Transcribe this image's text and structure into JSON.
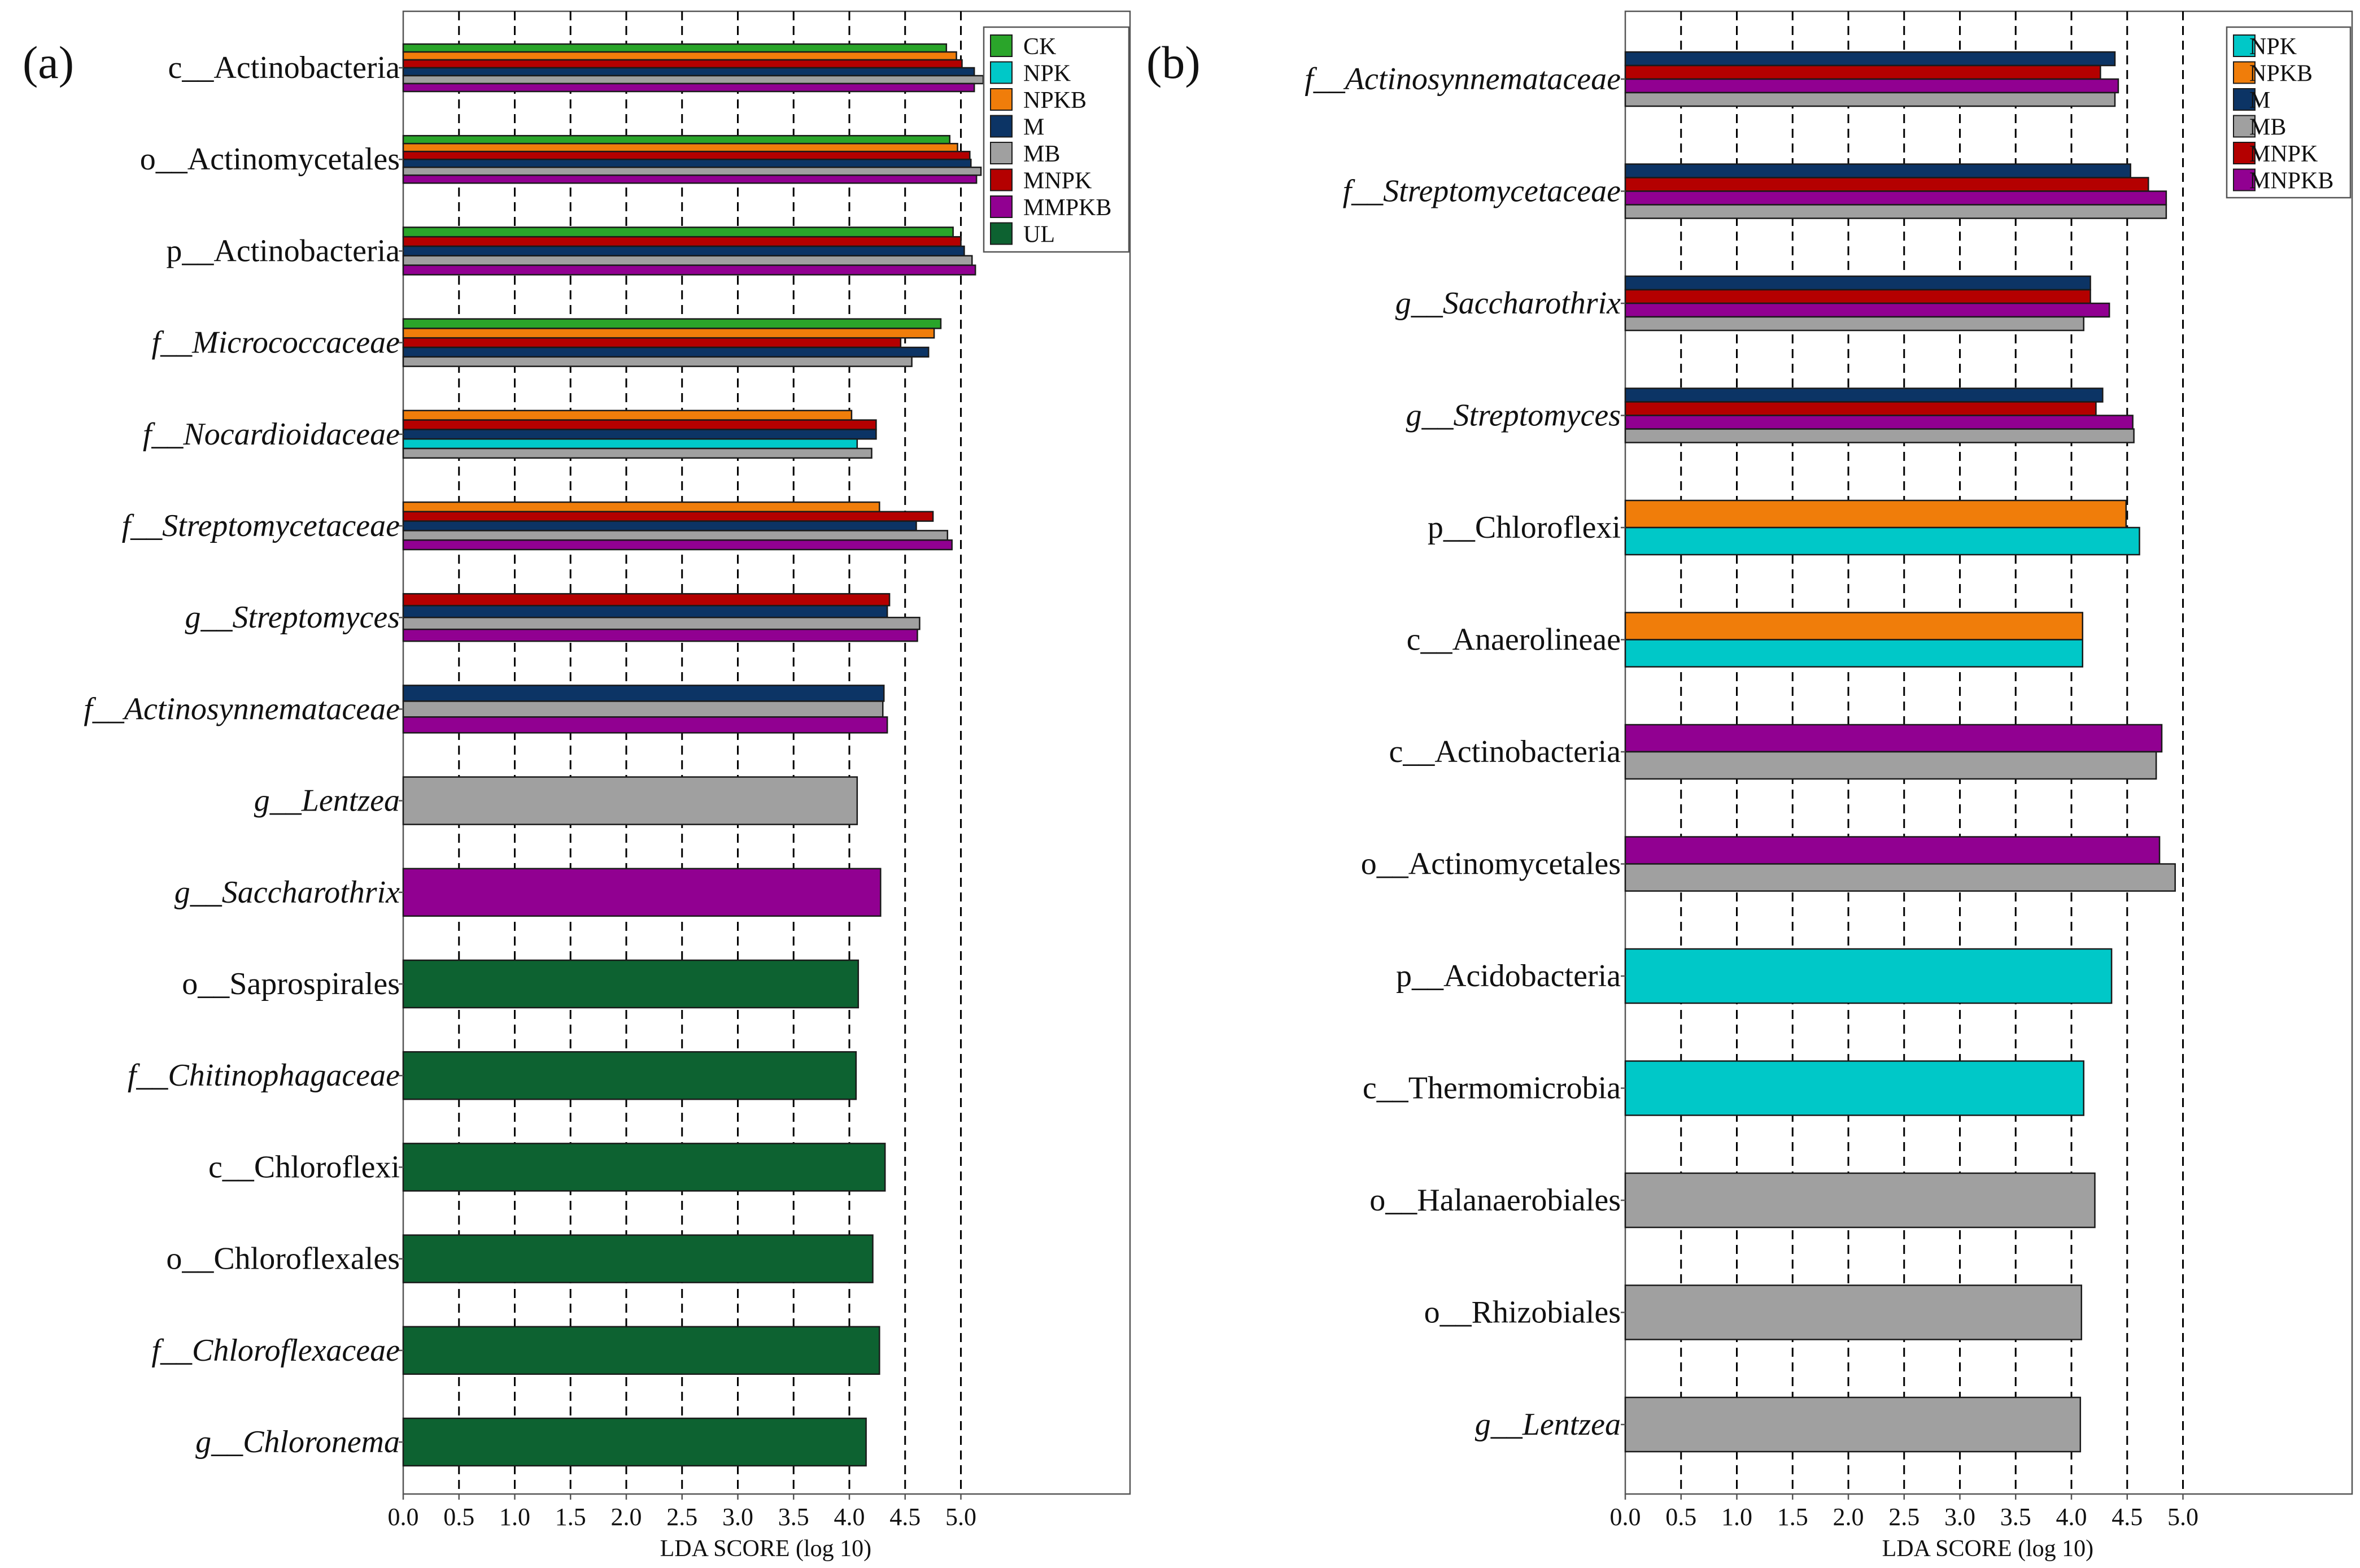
{
  "colors": {
    "CK": "#2aa52a",
    "NPK": "#00c8c8",
    "NPKB": "#f07d0a",
    "M": "#0c3465",
    "MB": "#a0a0a0",
    "MNPK": "#b40000",
    "MMPKB": "#910091",
    "MNPKB": "#910091",
    "UL": "#0d6231"
  },
  "chart_data": [
    {
      "type": "bar",
      "orientation": "horizontal",
      "panel_label": "(a)",
      "title": "",
      "xlabel": "LDA SCORE (log 10)",
      "ylabel": "",
      "xlim": [
        0,
        6.5
      ],
      "xticks": [
        "0.0",
        "0.5",
        "1.0",
        "1.5",
        "2.0",
        "2.5",
        "3.0",
        "3.5",
        "4.0",
        "4.5",
        "5.0"
      ],
      "grid": "vertical dashed at 0.5 intervals",
      "legend_position": "top-right",
      "legend": [
        "CK",
        "NPK",
        "NPKB",
        "M",
        "MB",
        "MNPK",
        "MMPKB",
        "UL"
      ],
      "categories": [
        {
          "prefix": "c__",
          "name": "Actinobacteria",
          "italic": false,
          "bars": [
            {
              "group": "CK",
              "value": 4.87
            },
            {
              "group": "NPKB",
              "value": 4.96
            },
            {
              "group": "MNPK",
              "value": 5.01
            },
            {
              "group": "M",
              "value": 5.12
            },
            {
              "group": "MB",
              "value": 5.2
            },
            {
              "group": "MMPKB",
              "value": 5.12
            }
          ]
        },
        {
          "prefix": "o__",
          "name": "Actinomycetales",
          "italic": false,
          "bars": [
            {
              "group": "CK",
              "value": 4.9
            },
            {
              "group": "NPKB",
              "value": 4.97
            },
            {
              "group": "MNPK",
              "value": 5.08
            },
            {
              "group": "M",
              "value": 5.09
            },
            {
              "group": "MB",
              "value": 5.18
            },
            {
              "group": "MMPKB",
              "value": 5.14
            }
          ]
        },
        {
          "prefix": "p__",
          "name": "Actinobacteria",
          "italic": false,
          "bars": [
            {
              "group": "CK",
              "value": 4.93
            },
            {
              "group": "MNPK",
              "value": 5.0
            },
            {
              "group": "M",
              "value": 5.03
            },
            {
              "group": "MB",
              "value": 5.1
            },
            {
              "group": "MMPKB",
              "value": 5.13
            }
          ]
        },
        {
          "prefix": "f__",
          "name": "Micrococcaceae",
          "italic": true,
          "bars": [
            {
              "group": "CK",
              "value": 4.82
            },
            {
              "group": "NPKB",
              "value": 4.76
            },
            {
              "group": "MNPK",
              "value": 4.46
            },
            {
              "group": "M",
              "value": 4.71
            },
            {
              "group": "MB",
              "value": 4.56
            }
          ]
        },
        {
          "prefix": "f__",
          "name": "Nocardioidaceae",
          "italic": true,
          "bars": [
            {
              "group": "NPKB",
              "value": 4.02
            },
            {
              "group": "MNPK",
              "value": 4.24
            },
            {
              "group": "M",
              "value": 4.24
            },
            {
              "group": "NPK",
              "value": 4.07
            },
            {
              "group": "MB",
              "value": 4.2
            }
          ]
        },
        {
          "prefix": "f__",
          "name": "Streptomycetaceae",
          "italic": true,
          "bars": [
            {
              "group": "NPKB",
              "value": 4.27
            },
            {
              "group": "MNPK",
              "value": 4.75
            },
            {
              "group": "M",
              "value": 4.6
            },
            {
              "group": "MB",
              "value": 4.88
            },
            {
              "group": "MMPKB",
              "value": 4.92
            }
          ]
        },
        {
          "prefix": "g__",
          "name": "Streptomyces",
          "italic": true,
          "bars": [
            {
              "group": "MNPK",
              "value": 4.36
            },
            {
              "group": "M",
              "value": 4.34
            },
            {
              "group": "MB",
              "value": 4.63
            },
            {
              "group": "MMPKB",
              "value": 4.61
            }
          ]
        },
        {
          "prefix": "f__",
          "name": "Actinosynnemataceae",
          "italic": true,
          "bars": [
            {
              "group": "M",
              "value": 4.31
            },
            {
              "group": "MB",
              "value": 4.3
            },
            {
              "group": "MMPKB",
              "value": 4.34
            }
          ]
        },
        {
          "prefix": "g__",
          "name": "Lentzea",
          "italic": true,
          "bars": [
            {
              "group": "MB",
              "value": 4.07
            }
          ]
        },
        {
          "prefix": "g__",
          "name": "Saccharothrix",
          "italic": true,
          "bars": [
            {
              "group": "MMPKB",
              "value": 4.28
            }
          ]
        },
        {
          "prefix": "o__",
          "name": "Saprospirales",
          "italic": false,
          "bars": [
            {
              "group": "UL",
              "value": 4.08
            }
          ]
        },
        {
          "prefix": "f__",
          "name": "Chitinophagaceae",
          "italic": true,
          "bars": [
            {
              "group": "UL",
              "value": 4.06
            }
          ]
        },
        {
          "prefix": "c__",
          "name": "Chloroflexi",
          "italic": false,
          "bars": [
            {
              "group": "UL",
              "value": 4.32
            }
          ]
        },
        {
          "prefix": "o__",
          "name": "Chloroflexales",
          "italic": false,
          "bars": [
            {
              "group": "UL",
              "value": 4.21
            }
          ]
        },
        {
          "prefix": "f__",
          "name": "Chloroflexaceae",
          "italic": true,
          "bars": [
            {
              "group": "UL",
              "value": 4.27
            }
          ]
        },
        {
          "prefix": "g__",
          "name": "Chloronema",
          "italic": true,
          "bars": [
            {
              "group": "UL",
              "value": 4.15
            }
          ]
        }
      ]
    },
    {
      "type": "bar",
      "orientation": "horizontal",
      "panel_label": "(b)",
      "title": "",
      "xlabel": "LDA SCORE (log 10)",
      "ylabel": "",
      "xlim": [
        0,
        6.5
      ],
      "xticks": [
        "0.0",
        "0.5",
        "1.0",
        "1.5",
        "2.0",
        "2.5",
        "3.0",
        "3.5",
        "4.0",
        "4.5",
        "5.0"
      ],
      "grid": "vertical dashed at 0.5 intervals",
      "legend_position": "top-right",
      "legend": [
        "NPK",
        "NPKB",
        "M",
        "MB",
        "MNPK",
        "MNPKB"
      ],
      "categories": [
        {
          "prefix": "f__",
          "name": "Actinosynnemataceae",
          "italic": true,
          "bars": [
            {
              "group": "M",
              "value": 4.39
            },
            {
              "group": "MNPK",
              "value": 4.26
            },
            {
              "group": "MNPKB",
              "value": 4.42
            },
            {
              "group": "MB",
              "value": 4.39
            }
          ]
        },
        {
          "prefix": "f__",
          "name": "Streptomycetaceae",
          "italic": true,
          "bars": [
            {
              "group": "M",
              "value": 4.53
            },
            {
              "group": "MNPK",
              "value": 4.69
            },
            {
              "group": "MNPKB",
              "value": 4.85
            },
            {
              "group": "MB",
              "value": 4.85
            }
          ]
        },
        {
          "prefix": "g__",
          "name": "Saccharothrix",
          "italic": true,
          "bars": [
            {
              "group": "M",
              "value": 4.17
            },
            {
              "group": "MNPK",
              "value": 4.17
            },
            {
              "group": "MNPKB",
              "value": 4.34
            },
            {
              "group": "MB",
              "value": 4.11
            }
          ]
        },
        {
          "prefix": "g__",
          "name": "Streptomyces",
          "italic": true,
          "bars": [
            {
              "group": "M",
              "value": 4.28
            },
            {
              "group": "MNPK",
              "value": 4.22
            },
            {
              "group": "MNPKB",
              "value": 4.55
            },
            {
              "group": "MB",
              "value": 4.56
            }
          ]
        },
        {
          "prefix": "p__",
          "name": "Chloroflexi",
          "italic": false,
          "bars": [
            {
              "group": "NPKB",
              "value": 4.49
            },
            {
              "group": "NPK",
              "value": 4.61
            }
          ]
        },
        {
          "prefix": "c__",
          "name": "Anaerolineae",
          "italic": false,
          "bars": [
            {
              "group": "NPKB",
              "value": 4.1
            },
            {
              "group": "NPK",
              "value": 4.1
            }
          ]
        },
        {
          "prefix": "c__",
          "name": "Actinobacteria",
          "italic": false,
          "bars": [
            {
              "group": "MNPKB",
              "value": 4.81
            },
            {
              "group": "MB",
              "value": 4.76
            }
          ]
        },
        {
          "prefix": "o__",
          "name": "Actinomycetales",
          "italic": false,
          "bars": [
            {
              "group": "MNPKB",
              "value": 4.79
            },
            {
              "group": "MB",
              "value": 4.93
            }
          ]
        },
        {
          "prefix": "p__",
          "name": "Acidobacteria",
          "italic": false,
          "bars": [
            {
              "group": "NPK",
              "value": 4.36
            }
          ]
        },
        {
          "prefix": "c__",
          "name": "Thermomicrobia",
          "italic": false,
          "bars": [
            {
              "group": "NPK",
              "value": 4.11
            }
          ]
        },
        {
          "prefix": "o__",
          "name": "Halanaerobiales",
          "italic": false,
          "bars": [
            {
              "group": "MB",
              "value": 4.21
            }
          ]
        },
        {
          "prefix": "o__",
          "name": "Rhizobiales",
          "italic": false,
          "bars": [
            {
              "group": "MB",
              "value": 4.09
            }
          ]
        },
        {
          "prefix": "g__",
          "name": "Lentzea",
          "italic": true,
          "bars": [
            {
              "group": "MB",
              "value": 4.08
            }
          ]
        }
      ]
    }
  ]
}
